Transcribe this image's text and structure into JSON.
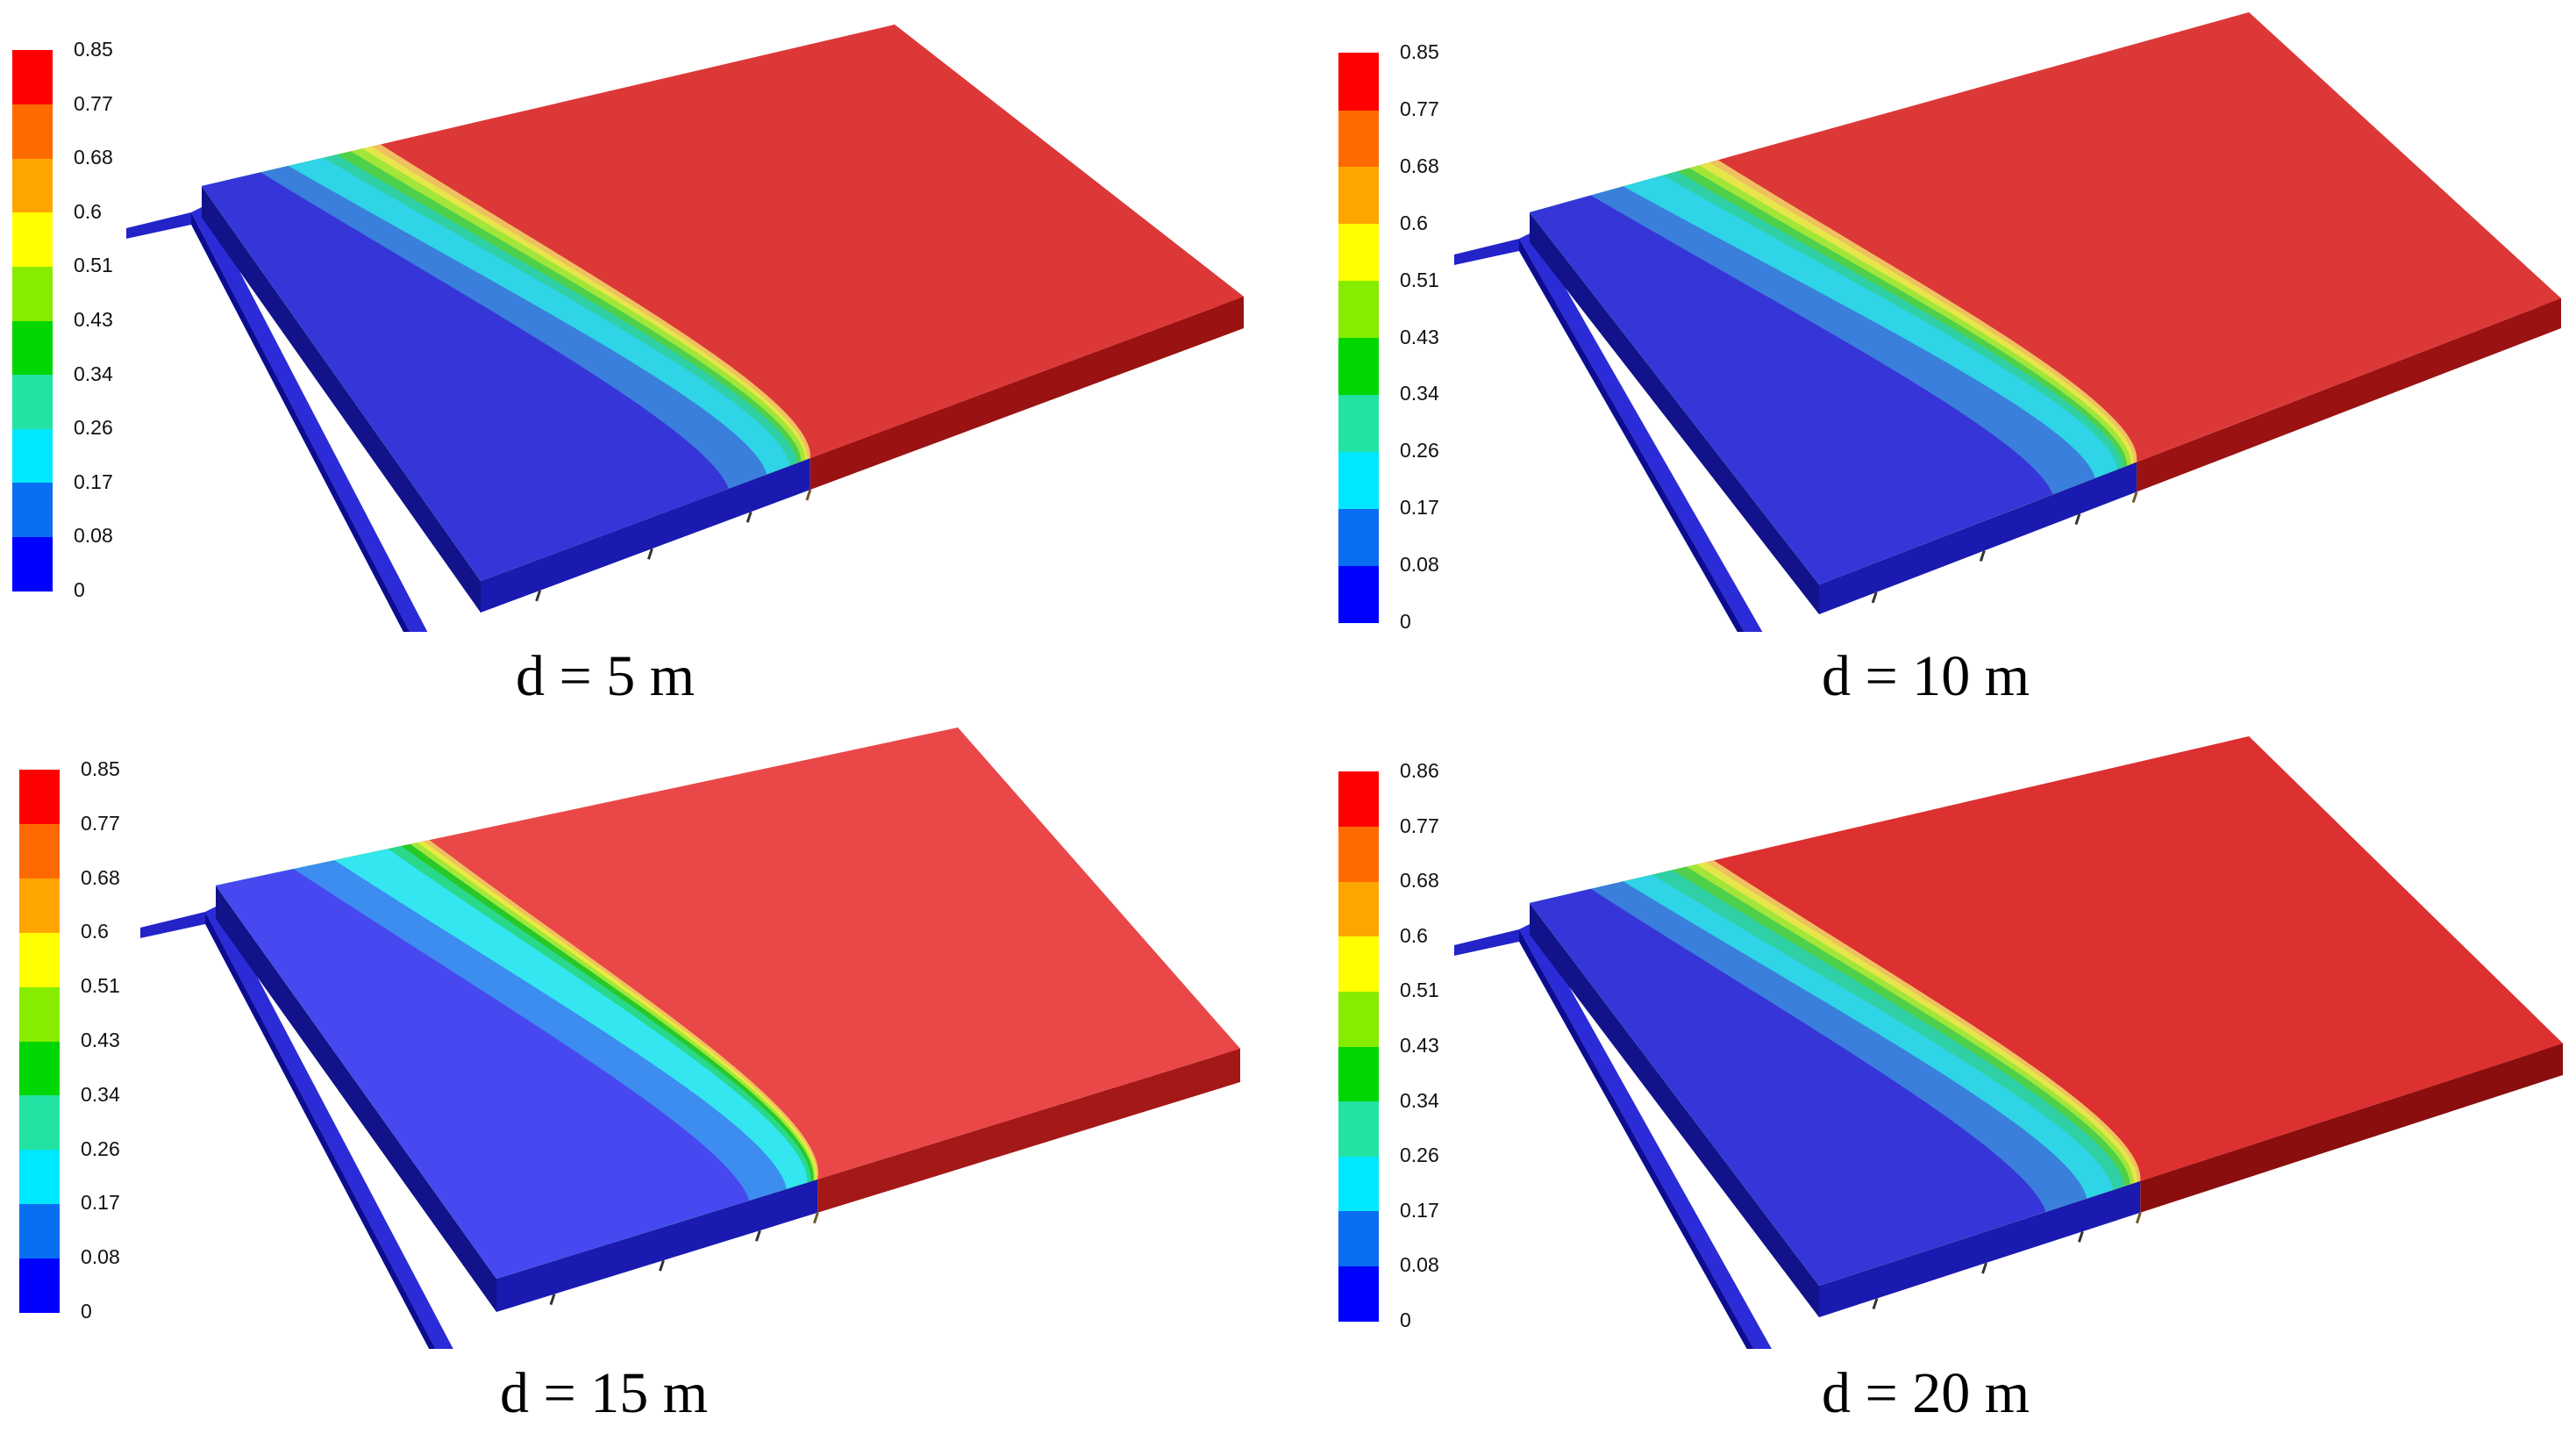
{
  "colors": [
    "#0000ff",
    "#0a6ef2",
    "#00e8ff",
    "#22e3a3",
    "#00d600",
    "#86ec00",
    "#ffff00",
    "#ffa500",
    "#ff6a00",
    "#ff0000"
  ],
  "panels": [
    {
      "caption": "d = 5 m",
      "ticks": [
        "0",
        "0.08",
        "0.17",
        "0.26",
        "0.34",
        "0.43",
        "0.51",
        "0.6",
        "0.68",
        "0.77",
        "0.85"
      ]
    },
    {
      "caption": "d = 10 m",
      "ticks": [
        "0",
        "0.08",
        "0.17",
        "0.26",
        "0.34",
        "0.43",
        "0.51",
        "0.6",
        "0.68",
        "0.77",
        "0.85"
      ]
    },
    {
      "caption": "d = 15 m",
      "ticks": [
        "0",
        "0.08",
        "0.17",
        "0.26",
        "0.34",
        "0.43",
        "0.51",
        "0.6",
        "0.68",
        "0.77",
        "0.85"
      ]
    },
    {
      "caption": "d = 20 m",
      "ticks": [
        "0",
        "0.08",
        "0.17",
        "0.26",
        "0.34",
        "0.43",
        "0.51",
        "0.6",
        "0.68",
        "0.77",
        "0.86"
      ]
    }
  ]
}
